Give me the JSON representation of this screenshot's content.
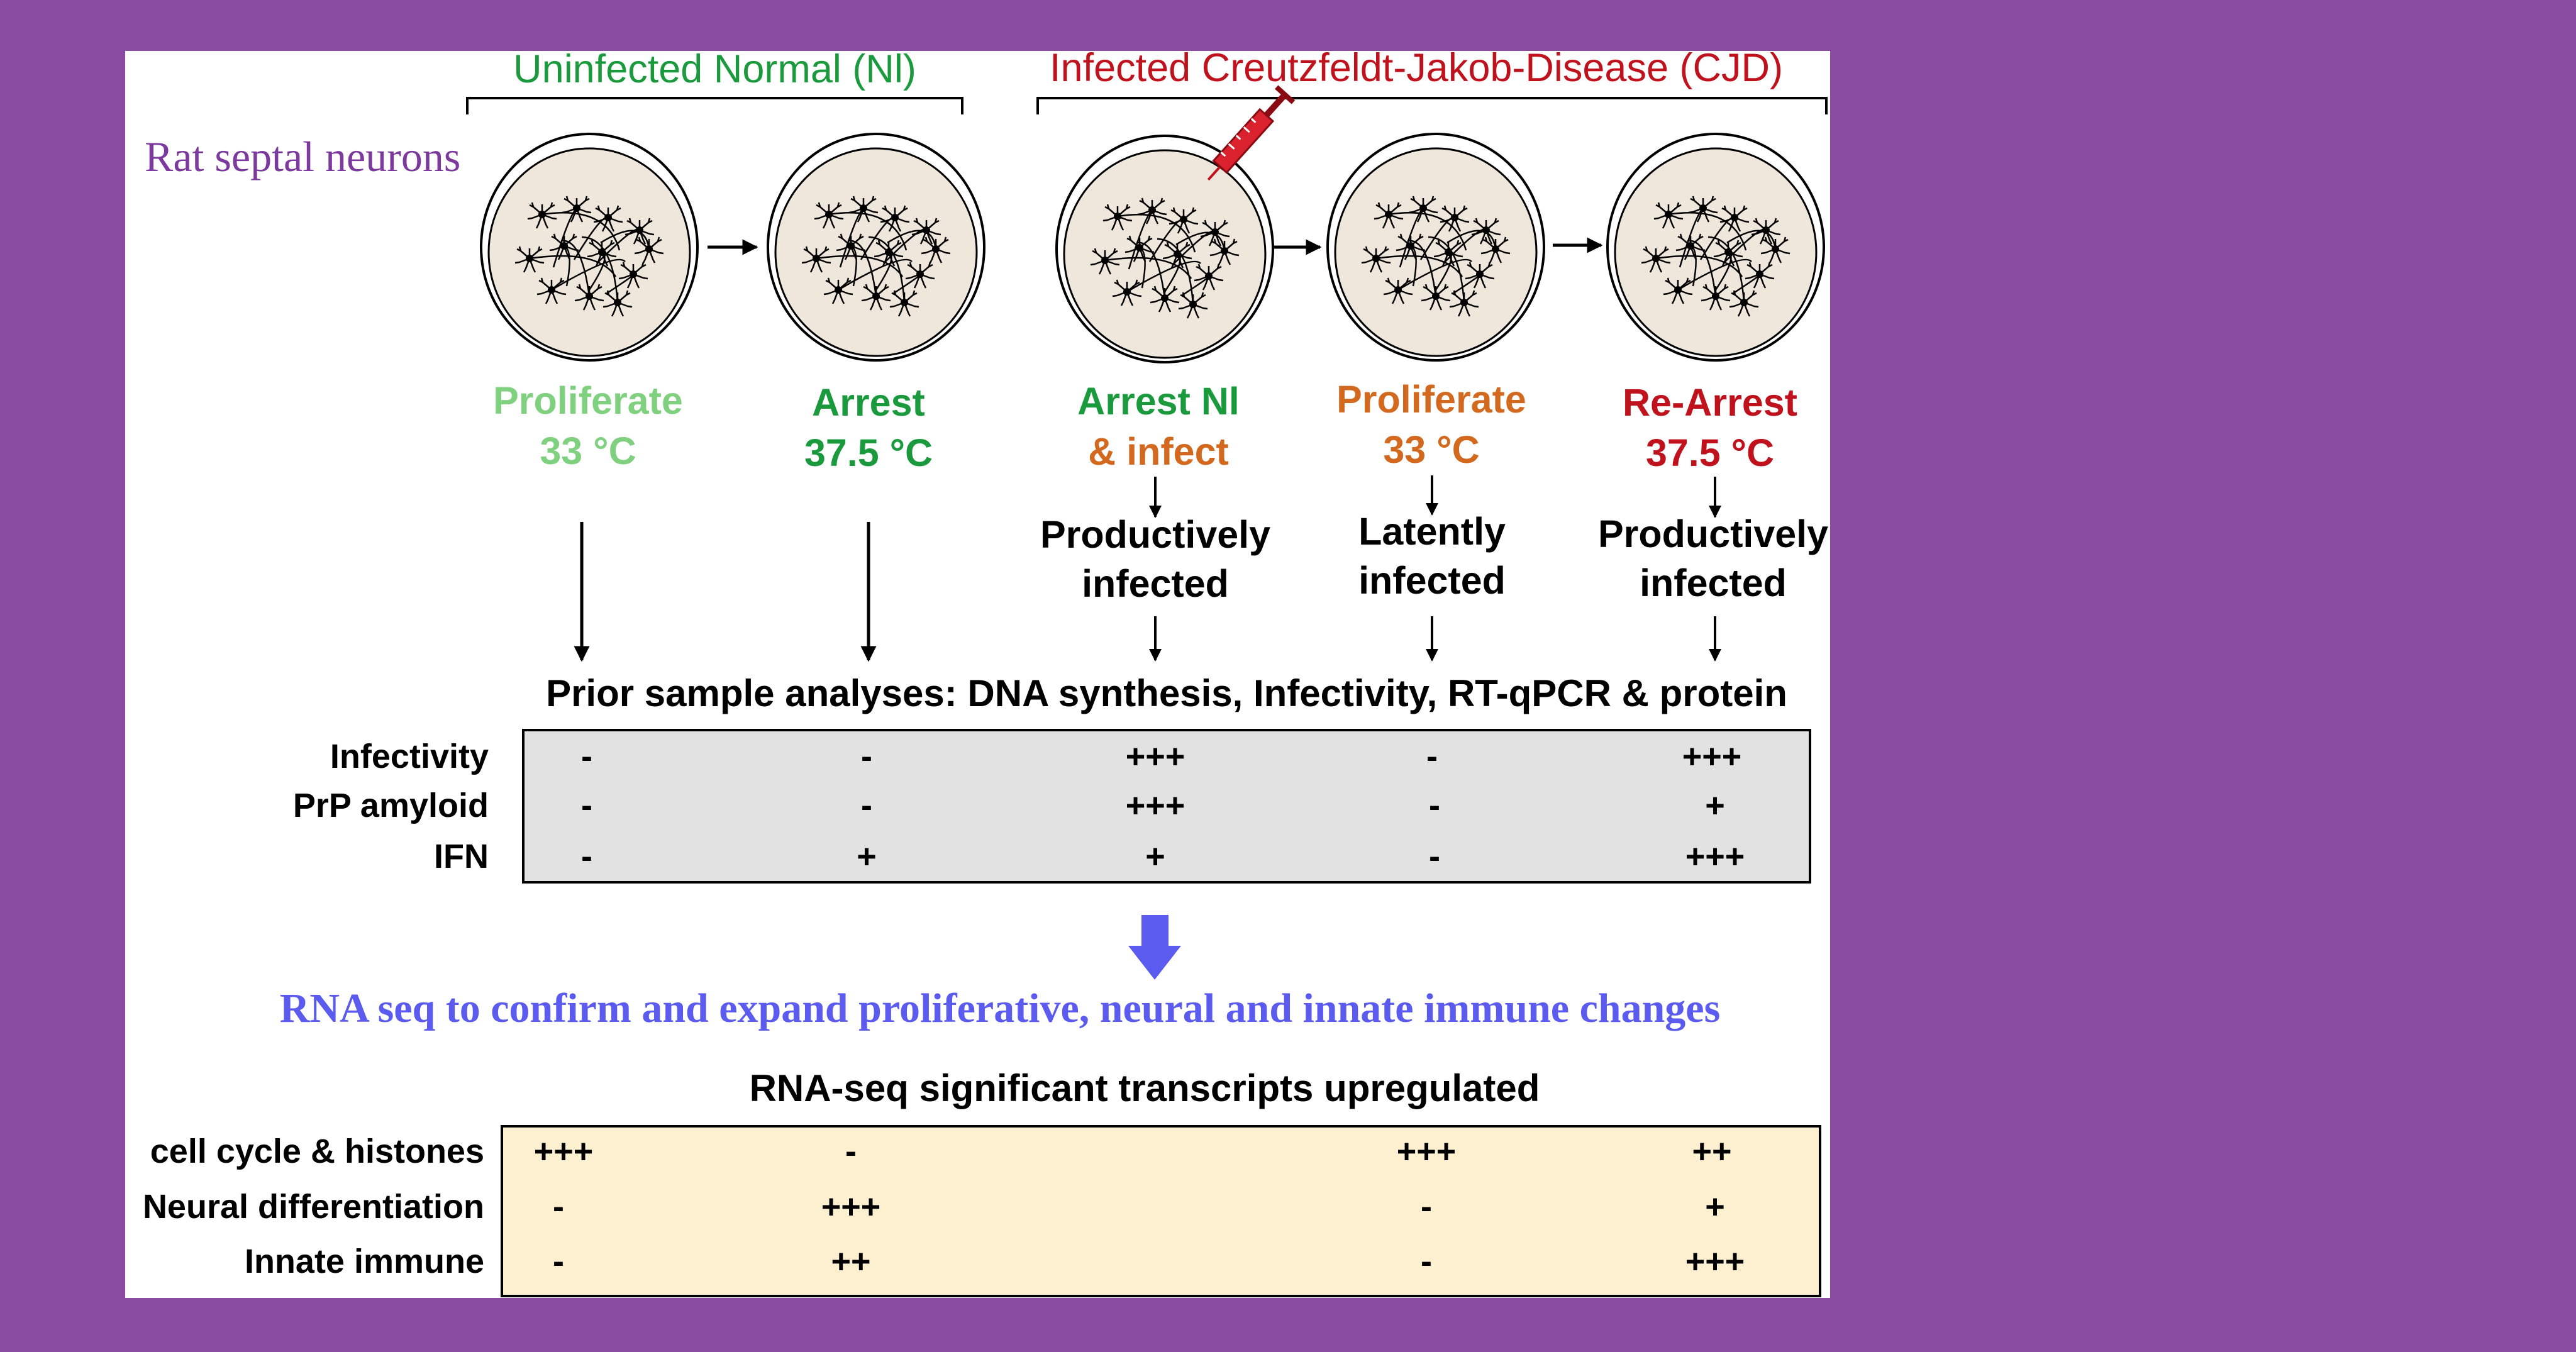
{
  "background_color": "#8a4ba2",
  "groups": {
    "uninfected": {
      "label": "Uninfected Normal (Nl)",
      "color": "#1a9a3c"
    },
    "infected": {
      "label": "Infected Creutzfeldt-Jakob-Disease (CJD)",
      "color": "#c0121c"
    }
  },
  "source_label": {
    "text": "Rat septal neurons",
    "color": "#7d3a9e"
  },
  "dishes": [
    {
      "name": "dish-proliferate-nl",
      "syringe": false
    },
    {
      "name": "dish-arrest-nl",
      "syringe": false
    },
    {
      "name": "dish-arrest-infect",
      "syringe": true
    },
    {
      "name": "dish-proliferate-cjd",
      "syringe": false
    },
    {
      "name": "dish-rearrest-cjd",
      "syringe": false
    }
  ],
  "stages": [
    {
      "line1": "Proliferate",
      "line2": "33 °C",
      "color1": "#7fd07f",
      "color2": "#7fd07f"
    },
    {
      "line1": "Arrest",
      "line2": "37.5 °C",
      "color1": "#1a9a3c",
      "color2": "#1a9a3c"
    },
    {
      "line1": "Arrest Nl",
      "line2": "& infect",
      "color1": "#1a9a3c",
      "color2": "#d2691e"
    },
    {
      "line1": "Proliferate",
      "line2": "33 °C",
      "color1": "#d2691e",
      "color2": "#d2691e"
    },
    {
      "line1": "Re-Arrest",
      "line2": "37.5 °C",
      "color1": "#c0121c",
      "color2": "#c0121c"
    }
  ],
  "infection_states": [
    {
      "line1": "Productively",
      "line2": "infected"
    },
    {
      "line1": "Latently",
      "line2": "infected"
    },
    {
      "line1": "Productively",
      "line2": "infected"
    }
  ],
  "prior_analyses_title": "Prior sample analyses: DNA synthesis, Infectivity, RT-qPCR & protein",
  "prior_table": {
    "bg": "#e2e2e2",
    "rows": [
      {
        "label": "Infectivity",
        "values": [
          "-",
          "-",
          "+++",
          "-",
          "+++"
        ]
      },
      {
        "label": "PrP amyloid",
        "values": [
          "-",
          "-",
          "+++",
          "-",
          "+"
        ]
      },
      {
        "label": "IFN",
        "values": [
          "-",
          "+",
          "+",
          "-",
          "+++"
        ]
      }
    ]
  },
  "rnaseq_banner": {
    "text": "RNA seq to confirm and expand  proliferative, neural and innate immune changes",
    "color": "#5b5bf0"
  },
  "rnaseq_table_title": "RNA-seq significant transcripts upregulated",
  "rnaseq_table": {
    "bg": "#fdf0d0",
    "rows": [
      {
        "label": "cell cycle & histones",
        "values": [
          "+++",
          "-",
          "+++",
          "++"
        ]
      },
      {
        "label": "Neural differentiation",
        "values": [
          "-",
          "+++",
          "-",
          "+"
        ]
      },
      {
        "label": "Innate immune",
        "values": [
          "-",
          "++",
          "-",
          "+++"
        ]
      }
    ]
  }
}
